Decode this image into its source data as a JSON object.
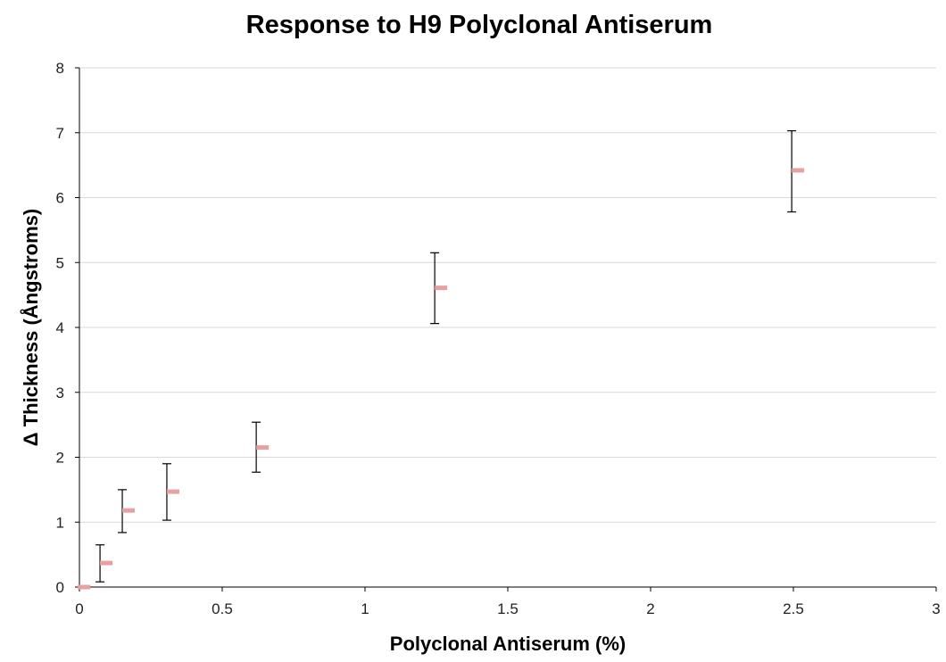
{
  "chart_data": {
    "type": "scatter",
    "title": "Response to H9 Polyclonal Antiserum",
    "xlabel": "Polyclonal Antiserum (%)",
    "ylabel": "Δ Thickness (Ångstroms)",
    "xlim": [
      0,
      3
    ],
    "ylim": [
      0,
      8
    ],
    "x_ticks": [
      0,
      0.5,
      1,
      1.5,
      2,
      2.5,
      3
    ],
    "x_tick_labels": [
      "0",
      "0.5",
      "1",
      "1.5",
      "2",
      "2.5",
      "3"
    ],
    "y_ticks": [
      0,
      1,
      2,
      3,
      4,
      5,
      6,
      7,
      8
    ],
    "y_tick_labels": [
      "0",
      "1",
      "2",
      "3",
      "4",
      "5",
      "6",
      "7",
      "8"
    ],
    "grid": "horizontal",
    "legend": "none",
    "series": [
      {
        "marker": "dash",
        "color": "#e8a0a0",
        "points": [
          {
            "x": 0.016,
            "y": 0.0,
            "err_low": 0.0,
            "err_high": 0.0
          },
          {
            "x": 0.094,
            "y": 0.37,
            "err_low": 0.08,
            "err_high": 0.65
          },
          {
            "x": 0.172,
            "y": 1.18,
            "err_low": 0.84,
            "err_high": 1.5
          },
          {
            "x": 0.328,
            "y": 1.47,
            "err_low": 1.03,
            "err_high": 1.9
          },
          {
            "x": 0.641,
            "y": 2.15,
            "err_low": 1.77,
            "err_high": 2.54
          },
          {
            "x": 1.266,
            "y": 4.61,
            "err_low": 4.06,
            "err_high": 5.15
          },
          {
            "x": 2.516,
            "y": 6.42,
            "err_low": 5.78,
            "err_high": 7.03
          }
        ]
      }
    ],
    "error_bar_color": "#000000",
    "gridline_color": "#d9d9d9",
    "axis_color": "#000000"
  }
}
